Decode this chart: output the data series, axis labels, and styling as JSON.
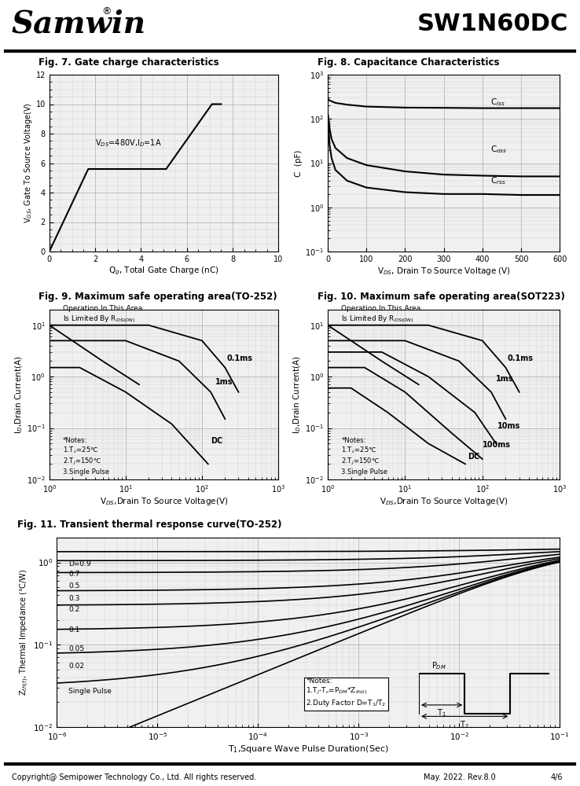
{
  "title_left": "Samwin",
  "title_right": "SW1N60DC",
  "fig7_title": "Fig. 7. Gate charge characteristics",
  "fig8_title": "Fig. 8. Capacitance Characteristics",
  "fig9_title": "Fig. 9. Maximum safe operating area(TO-252)",
  "fig10_title": "Fig. 10. Maximum safe operating area(SOT223)",
  "fig11_title": "Fig. 11. Transient thermal response curve(TO-252)",
  "footer": "Copyright@ Semipower Technology Co., Ltd. All rights reserved.",
  "footer_right": "May. 2022. Rev.8.0",
  "footer_page": "4/6",
  "bg_color": "#ffffff",
  "plot_bg": "#f0f0f0",
  "grid_color": "#aaaaaa",
  "grid_color_minor": "#cccccc"
}
